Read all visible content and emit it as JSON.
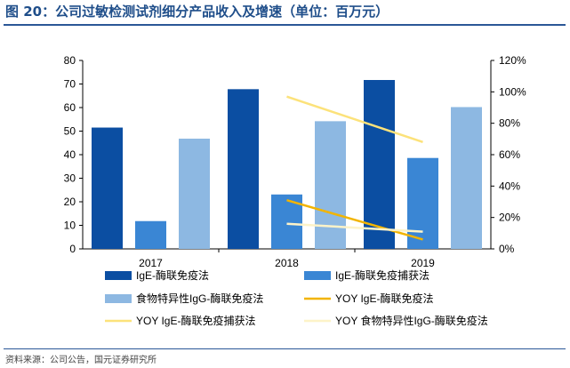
{
  "page": {
    "title": "图 20：公司过敏检测试剂细分产品收入及增速（单位：百万元）",
    "source": "资料来源：公司公告，国元证券研究所"
  },
  "chart_data": {
    "type": "bar",
    "categories": [
      "2017",
      "2018",
      "2019"
    ],
    "left_axis": {
      "min": 0,
      "max": 80,
      "ticks": [
        "0",
        "10",
        "20",
        "30",
        "40",
        "50",
        "60",
        "70",
        "80"
      ]
    },
    "right_axis": {
      "min": 0,
      "max": 1.2,
      "ticks": [
        "0%",
        "20%",
        "40%",
        "60%",
        "80%",
        "100%",
        "120%"
      ]
    },
    "series": [
      {
        "name": "IgE-酶联免疫法",
        "kind": "bar",
        "axis": "left",
        "color": "#0b4ea2",
        "values": [
          51.5,
          67.8,
          71.7
        ]
      },
      {
        "name": "IgE-酶联免疫捕获法",
        "kind": "bar",
        "axis": "left",
        "color": "#3a86d4",
        "values": [
          11.8,
          23.1,
          38.6
        ]
      },
      {
        "name": "食物特异性IgG-酶联免疫法",
        "kind": "bar",
        "axis": "left",
        "color": "#8db8e2",
        "values": [
          46.8,
          54.2,
          60.2
        ]
      },
      {
        "name": "YOY IgE-酶联免疫法",
        "kind": "line",
        "axis": "right",
        "color": "#f2b400",
        "values": [
          null,
          0.31,
          0.06
        ]
      },
      {
        "name": "YOY IgE-酶联免疫捕获法",
        "kind": "line",
        "axis": "right",
        "color": "#fce27a",
        "values": [
          null,
          0.97,
          0.68
        ]
      },
      {
        "name": "YOY 食物特异性IgG-酶联免疫法",
        "kind": "line",
        "axis": "right",
        "color": "#fdf3c8",
        "values": [
          null,
          0.16,
          0.11
        ]
      }
    ],
    "legend": {
      "placement": "bottom",
      "columns": 2
    },
    "grid": false
  }
}
